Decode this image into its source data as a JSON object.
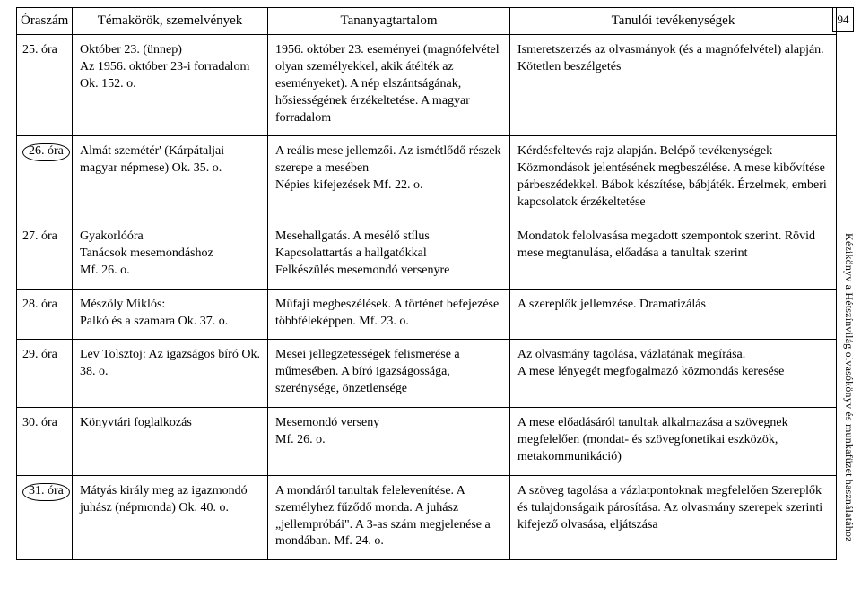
{
  "page_number": "94",
  "side_caption": "Kézikönyv a Hétszínvilág olvasókönyv és munkafüzet használatához",
  "headers": {
    "col1": "Óraszám",
    "col2": "Témakörök, szemelvények",
    "col3": "Tananyagtartalom",
    "col4": "Tanulói tevékenységek"
  },
  "rows": [
    {
      "num": "25. óra",
      "circled": false,
      "c2": "Október 23. (ünnep)\nAz 1956. október 23-i forradalom Ok. 152. o.",
      "c3": "1956. október 23. eseményei (magnófelvétel olyan személyekkel, akik átélték az eseményeket). A nép elszántságának, hősiességének érzékeltetése. A magyar forradalom",
      "c4": "Ismeretszerzés az olvasmányok (és a magnófelvétel) alapján. Kötetlen beszélgetés"
    },
    {
      "num": "26. óra",
      "circled": true,
      "c2": "Almát szemétér' (Kárpátaljai magyar népmese) Ok. 35. o.",
      "c3": "A reális mese jellemzői. Az ismétlődő részek szerepe a mesében\nNépies kifejezések Mf. 22. o.",
      "c4": "Kérdésfeltevés rajz alapján. Belépő tevékenységek Közmondások jelentésének megbeszélése. A mese kibővítése párbeszédekkel. Bábok készítése, bábjáték. Érzelmek, emberi kapcsolatok érzékeltetése"
    },
    {
      "num": "27. óra",
      "circled": false,
      "c2": "Gyakorlóóra\nTanácsok mesemondáshoz\nMf. 26. o.",
      "c3": "Mesehallgatás. A mesélő stílus\nKapcsolattartás a hallgatókkal\nFelkészülés mesemondó versenyre",
      "c4": "Mondatok felolvasása megadott szempontok szerint. Rövid mese megtanulása, előadása a tanultak szerint"
    },
    {
      "num": "28. óra",
      "circled": false,
      "c2": "Mészöly Miklós:\nPalkó és a szamara Ok. 37. o.",
      "c3": "Műfaji megbeszélések. A történet befejezése többféleképpen. Mf. 23. o.",
      "c4": "A szereplők jellemzése. Dramatizálás"
    },
    {
      "num": "29. óra",
      "circled": false,
      "c2": "Lev Tolsztoj: Az igazságos bíró Ok. 38. o.",
      "c3": "Mesei jellegzetességek felismerése a műmesében. A bíró igazságossága, szerénysége, önzetlensége",
      "c4": "Az olvasmány tagolása, vázlatának megírása.\nA mese lényegét megfogalmazó közmondás keresése"
    },
    {
      "num": "30. óra",
      "circled": false,
      "c2": "Könyvtári foglalkozás",
      "c3": "Mesemondó verseny\nMf. 26. o.",
      "c4": "A mese előadásáról tanultak alkalmazása a szövegnek megfelelően (mondat- és szövegfonetikai eszközök, metakommunikáció)"
    },
    {
      "num": "31. óra",
      "circled": true,
      "c2": "Mátyás király meg az igazmondó juhász (népmonda) Ok. 40. o.",
      "c3": "A mondáról tanultak felelevenítése. A személyhez fűződő monda. A juhász „jellempróbái\". A 3-as szám megjelenése a mondában. Mf. 24. o.",
      "c4": "A szöveg tagolása a vázlatpontoknak megfelelően Szereplők és tulajdonságaik párosítása. Az olvasmány szerepek szerinti kifejező olvasása, eljátszása"
    }
  ]
}
